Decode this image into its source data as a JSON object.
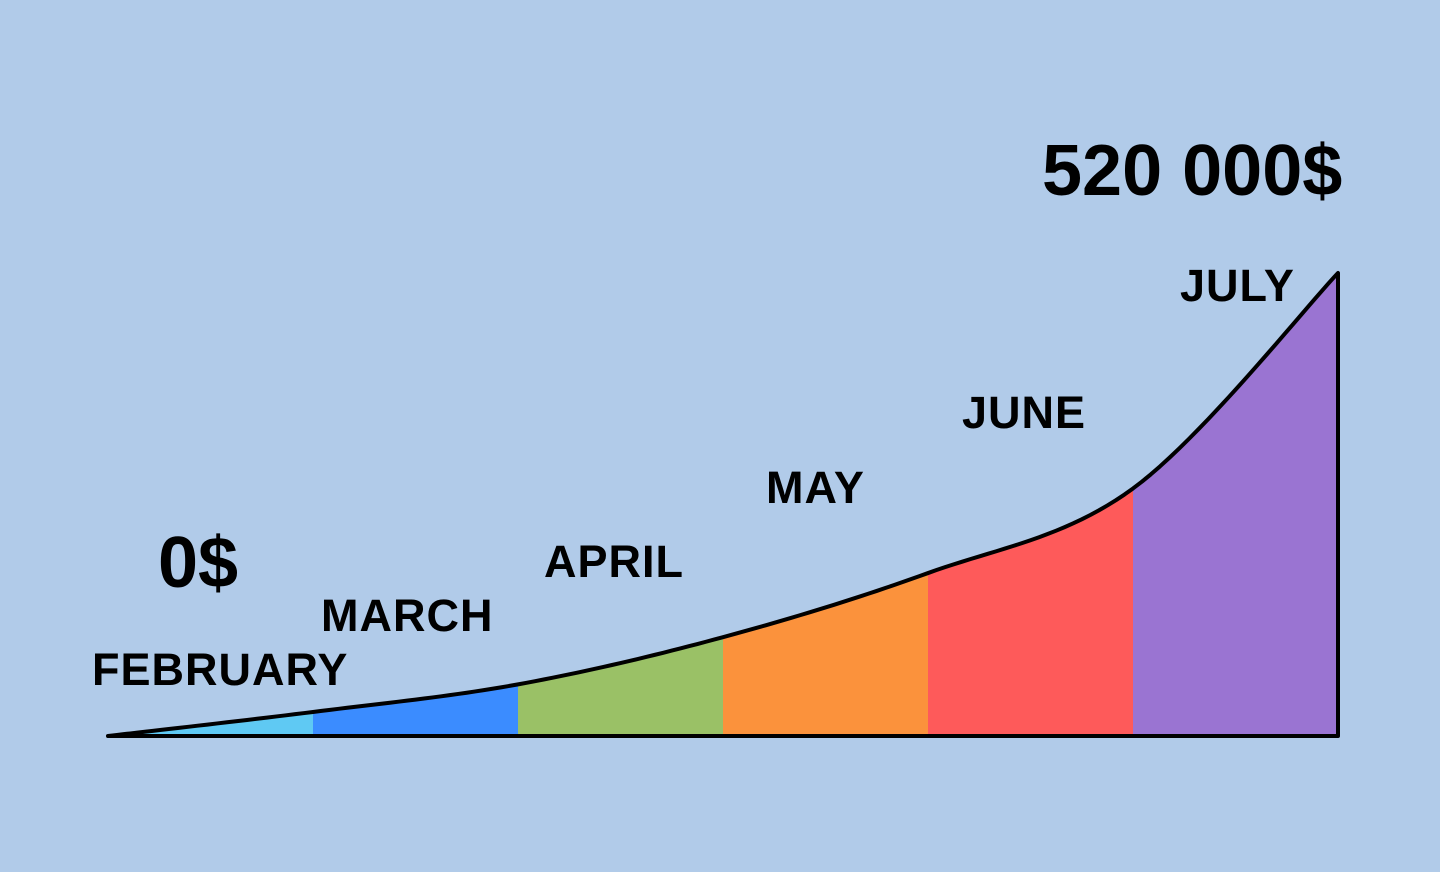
{
  "chart_data": {
    "type": "area",
    "title": "",
    "xlabel": "",
    "ylabel": "",
    "x": [
      0,
      1,
      2,
      3,
      4,
      5,
      6
    ],
    "curve": [
      0,
      27000,
      58000,
      111000,
      183000,
      278000,
      520000
    ],
    "ylim": [
      0,
      520000
    ],
    "segments": [
      {
        "month": "FEBRUARY",
        "color": "#5fc9f3"
      },
      {
        "month": "MARCH",
        "color": "#3b8cff"
      },
      {
        "month": "APRIL",
        "color": "#9ac166"
      },
      {
        "month": "MAY",
        "color": "#fb923c"
      },
      {
        "month": "JUNE",
        "color": "#fe5a5a"
      },
      {
        "month": "JULY",
        "color": "#9a74d2"
      }
    ],
    "start_label": "0$",
    "end_label": "520 000$",
    "background_color": "#b1cbe9",
    "outline_color": "#000000"
  }
}
